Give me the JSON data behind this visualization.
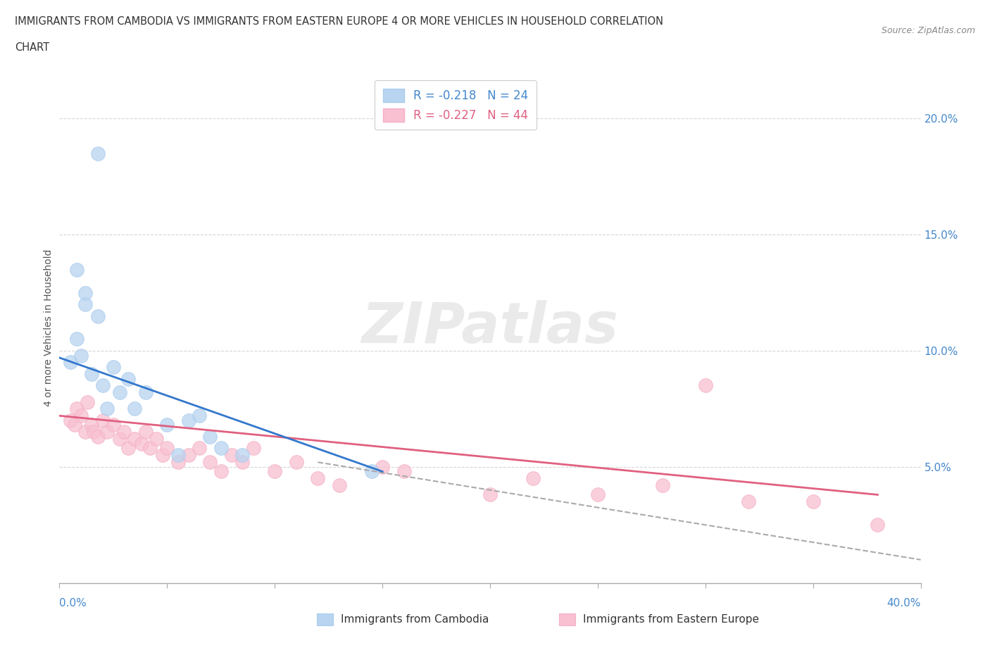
{
  "title_line1": "IMMIGRANTS FROM CAMBODIA VS IMMIGRANTS FROM EASTERN EUROPE 4 OR MORE VEHICLES IN HOUSEHOLD CORRELATION",
  "title_line2": "CHART",
  "source": "Source: ZipAtlas.com",
  "ylabel": "4 or more Vehicles in Household",
  "legend_entry1": "R = -0.218   N = 24",
  "legend_entry2": "R = -0.227   N = 44",
  "legend_label1": "Immigrants from Cambodia",
  "legend_label2": "Immigrants from Eastern Europe",
  "watermark": "ZIPatlas",
  "blue_scatter": [
    [
      0.005,
      0.095
    ],
    [
      0.008,
      0.105
    ],
    [
      0.01,
      0.098
    ],
    [
      0.012,
      0.12
    ],
    [
      0.015,
      0.09
    ],
    [
      0.018,
      0.115
    ],
    [
      0.02,
      0.085
    ],
    [
      0.022,
      0.075
    ],
    [
      0.025,
      0.093
    ],
    [
      0.028,
      0.082
    ],
    [
      0.032,
      0.088
    ],
    [
      0.035,
      0.075
    ],
    [
      0.04,
      0.082
    ],
    [
      0.05,
      0.068
    ],
    [
      0.055,
      0.055
    ],
    [
      0.06,
      0.07
    ],
    [
      0.018,
      0.185
    ],
    [
      0.008,
      0.135
    ],
    [
      0.012,
      0.125
    ],
    [
      0.065,
      0.072
    ],
    [
      0.07,
      0.063
    ],
    [
      0.075,
      0.058
    ],
    [
      0.085,
      0.055
    ],
    [
      0.145,
      0.048
    ]
  ],
  "pink_scatter": [
    [
      0.005,
      0.07
    ],
    [
      0.007,
      0.068
    ],
    [
      0.008,
      0.075
    ],
    [
      0.01,
      0.072
    ],
    [
      0.012,
      0.065
    ],
    [
      0.013,
      0.078
    ],
    [
      0.015,
      0.068
    ],
    [
      0.016,
      0.065
    ],
    [
      0.018,
      0.063
    ],
    [
      0.02,
      0.07
    ],
    [
      0.022,
      0.065
    ],
    [
      0.025,
      0.068
    ],
    [
      0.028,
      0.062
    ],
    [
      0.03,
      0.065
    ],
    [
      0.032,
      0.058
    ],
    [
      0.035,
      0.062
    ],
    [
      0.038,
      0.06
    ],
    [
      0.04,
      0.065
    ],
    [
      0.042,
      0.058
    ],
    [
      0.045,
      0.062
    ],
    [
      0.048,
      0.055
    ],
    [
      0.05,
      0.058
    ],
    [
      0.055,
      0.052
    ],
    [
      0.06,
      0.055
    ],
    [
      0.065,
      0.058
    ],
    [
      0.07,
      0.052
    ],
    [
      0.075,
      0.048
    ],
    [
      0.08,
      0.055
    ],
    [
      0.085,
      0.052
    ],
    [
      0.09,
      0.058
    ],
    [
      0.1,
      0.048
    ],
    [
      0.11,
      0.052
    ],
    [
      0.12,
      0.045
    ],
    [
      0.13,
      0.042
    ],
    [
      0.15,
      0.05
    ],
    [
      0.16,
      0.048
    ],
    [
      0.2,
      0.038
    ],
    [
      0.22,
      0.045
    ],
    [
      0.25,
      0.038
    ],
    [
      0.28,
      0.042
    ],
    [
      0.3,
      0.085
    ],
    [
      0.32,
      0.035
    ],
    [
      0.35,
      0.035
    ],
    [
      0.38,
      0.025
    ]
  ],
  "blue_line": {
    "x0": 0.0,
    "y0": 0.097,
    "x1": 0.15,
    "y1": 0.048
  },
  "pink_line": {
    "x0": 0.0,
    "y0": 0.072,
    "x1": 0.38,
    "y1": 0.038
  },
  "dashed_line": {
    "x0": 0.12,
    "y0": 0.052,
    "x1": 0.4,
    "y1": 0.01
  },
  "xlim": [
    0.0,
    0.4
  ],
  "ylim": [
    0.0,
    0.22
  ],
  "yticks": [
    0.05,
    0.1,
    0.15,
    0.2
  ],
  "ytick_labels": [
    "5.0%",
    "10.0%",
    "15.0%",
    "20.0%"
  ],
  "grid_color": "#cccccc",
  "blue_color": "#aaccee",
  "blue_fill": "#b8d4f0",
  "blue_line_color": "#3377cc",
  "pink_color": "#f4b0c8",
  "pink_fill": "#f8c0d0",
  "pink_line_color": "#e06080",
  "dashed_color": "#aaaaaa",
  "bg_color": "#ffffff",
  "tick_color": "#4488cc",
  "title_color": "#333333",
  "ylabel_color": "#555555"
}
